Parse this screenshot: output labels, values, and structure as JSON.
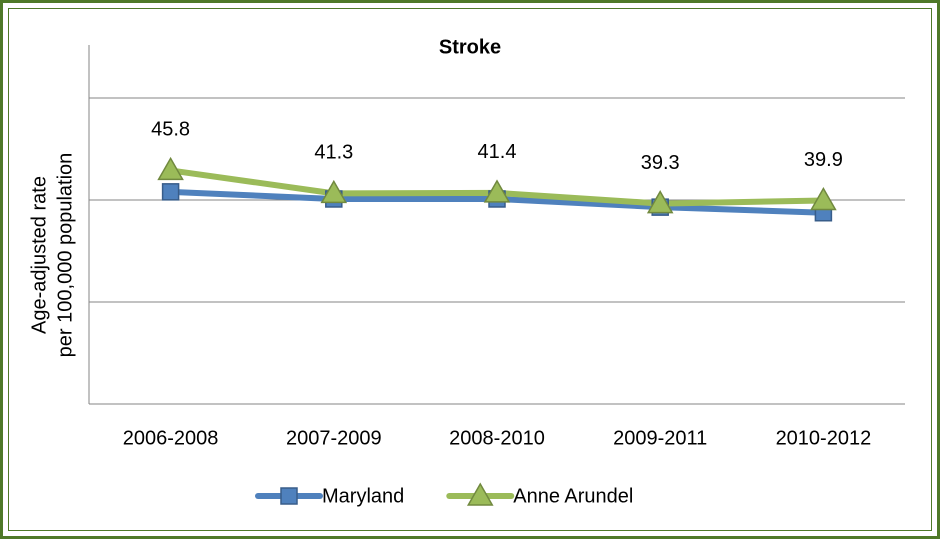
{
  "chart_data": {
    "type": "line",
    "title": "Stroke",
    "ylabel": [
      "Age-adjusted rate",
      "per 100,000 population"
    ],
    "categories": [
      "2006-2008",
      "2007-2009",
      "2008-2010",
      "2009-2011",
      "2010-2012"
    ],
    "series": [
      {
        "name": "Maryland",
        "color": "#4f81bd",
        "marker": "square",
        "values": [
          41.6,
          40.2,
          40.2,
          38.6,
          37.5
        ]
      },
      {
        "name": "Anne Arundel",
        "color": "#9bbb59",
        "marker": "triangle",
        "values": [
          45.8,
          41.3,
          41.4,
          39.3,
          39.9
        ]
      }
    ],
    "data_labels_series": 1,
    "ylim": [
      0,
      70
    ],
    "yticks": [
      0,
      20,
      40,
      60
    ],
    "grid": true,
    "legend": "bottom"
  }
}
